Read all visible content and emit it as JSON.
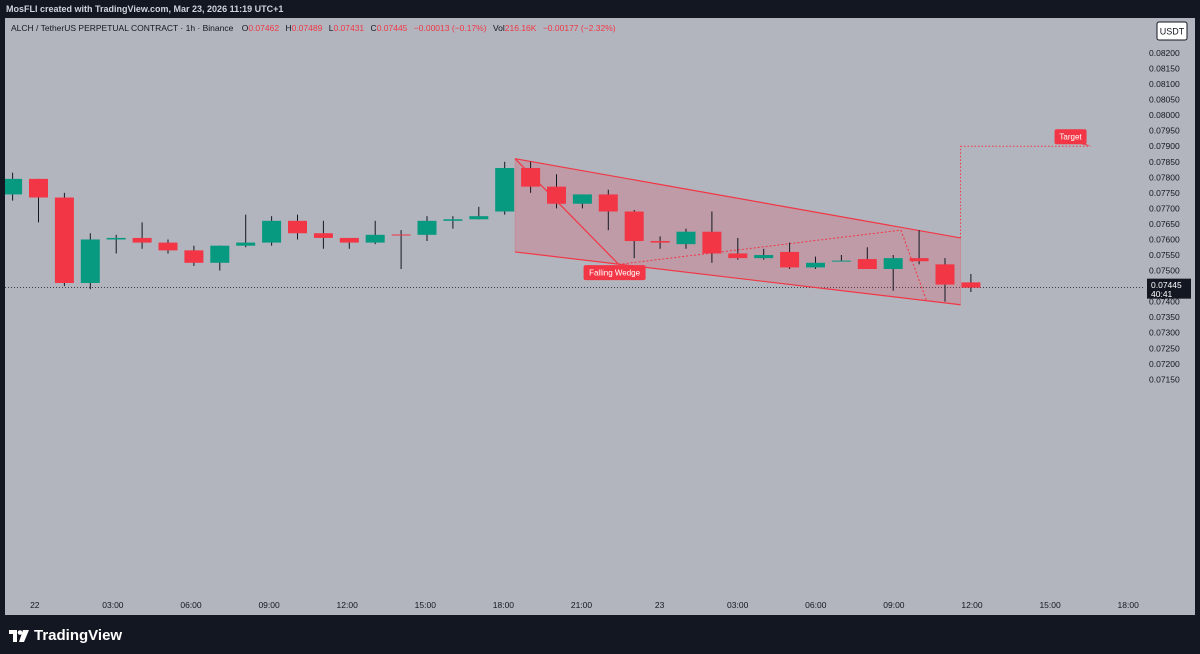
{
  "header": {
    "author_line": "MosFLI created with TradingView.com, Mar 23, 2026 11:19 UTC+1"
  },
  "legend": {
    "symbol": "ALCH / TetherUS PERPETUAL CONTRACT · 1h · Binance",
    "o_label": "O",
    "o_value": "0.07462",
    "h_label": "H",
    "h_value": "0.07489",
    "l_label": "L",
    "l_value": "0.07431",
    "c_label": "C",
    "c_value": "0.07445",
    "change": "−0.00013 (−0.17%)",
    "vol_label": "Vol",
    "vol_value": "216.16K",
    "vol_change": "−0.00177 (−2.32%)"
  },
  "price_scale": {
    "currency": "USDT",
    "ticks": [
      "0.08200",
      "0.08150",
      "0.08100",
      "0.08050",
      "0.08000",
      "0.07950",
      "0.07900",
      "0.07850",
      "0.07800",
      "0.07750",
      "0.07700",
      "0.07650",
      "0.07600",
      "0.07550",
      "0.07500",
      "0.07450",
      "0.07400",
      "0.07350",
      "0.07300",
      "0.07250",
      "0.07200",
      "0.07150"
    ],
    "last_price": "0.07445",
    "countdown": "40:41"
  },
  "time_scale": {
    "ticks": [
      "22",
      "03:00",
      "06:00",
      "09:00",
      "12:00",
      "15:00",
      "18:00",
      "21:00",
      "23",
      "03:00",
      "06:00",
      "09:00",
      "12:00",
      "15:00",
      "18:00"
    ]
  },
  "annotations": {
    "pattern_label": "Falling Wedge",
    "target_label": "Target"
  },
  "colors": {
    "background": "#b2b5be",
    "bull": "#089981",
    "bear": "#f23645",
    "wedge_fill": "#f2364533",
    "frame": "#131722"
  },
  "footer": {
    "brand": "TradingView"
  },
  "chart_data": {
    "type": "candlestick",
    "title": "ALCH / TetherUS PERPETUAL CONTRACT · 1h · Binance",
    "ylabel": "USDT",
    "ylim": [
      0.0711,
      0.0822
    ],
    "candles": [
      {
        "o": 0.07745,
        "h": 0.07815,
        "l": 0.07725,
        "c": 0.07795
      },
      {
        "o": 0.07795,
        "h": 0.07795,
        "l": 0.07655,
        "c": 0.07735
      },
      {
        "o": 0.07735,
        "h": 0.0775,
        "l": 0.0745,
        "c": 0.0746
      },
      {
        "o": 0.0746,
        "h": 0.0762,
        "l": 0.0744,
        "c": 0.076
      },
      {
        "o": 0.076,
        "h": 0.07615,
        "l": 0.07555,
        "c": 0.07605
      },
      {
        "o": 0.07605,
        "h": 0.07655,
        "l": 0.0757,
        "c": 0.0759
      },
      {
        "o": 0.0759,
        "h": 0.076,
        "l": 0.07555,
        "c": 0.07565
      },
      {
        "o": 0.07565,
        "h": 0.0758,
        "l": 0.07515,
        "c": 0.07525
      },
      {
        "o": 0.07525,
        "h": 0.0758,
        "l": 0.075,
        "c": 0.0758
      },
      {
        "o": 0.0758,
        "h": 0.0768,
        "l": 0.07575,
        "c": 0.0759
      },
      {
        "o": 0.0759,
        "h": 0.07675,
        "l": 0.0758,
        "c": 0.0766
      },
      {
        "o": 0.0766,
        "h": 0.0768,
        "l": 0.076,
        "c": 0.0762
      },
      {
        "o": 0.0762,
        "h": 0.0766,
        "l": 0.0757,
        "c": 0.07605
      },
      {
        "o": 0.07605,
        "h": 0.07605,
        "l": 0.0757,
        "c": 0.0759
      },
      {
        "o": 0.0759,
        "h": 0.0766,
        "l": 0.07585,
        "c": 0.07615
      },
      {
        "o": 0.07616,
        "h": 0.0763,
        "l": 0.07505,
        "c": 0.07615
      },
      {
        "o": 0.07615,
        "h": 0.07675,
        "l": 0.07595,
        "c": 0.0766
      },
      {
        "o": 0.0766,
        "h": 0.07675,
        "l": 0.07635,
        "c": 0.07665
      },
      {
        "o": 0.07665,
        "h": 0.07705,
        "l": 0.07665,
        "c": 0.07675
      },
      {
        "o": 0.0769,
        "h": 0.0785,
        "l": 0.0768,
        "c": 0.0783
      },
      {
        "o": 0.0783,
        "h": 0.0785,
        "l": 0.0775,
        "c": 0.0777
      },
      {
        "o": 0.0777,
        "h": 0.0781,
        "l": 0.077,
        "c": 0.07715
      },
      {
        "o": 0.07715,
        "h": 0.07745,
        "l": 0.077,
        "c": 0.07745
      },
      {
        "o": 0.07745,
        "h": 0.0776,
        "l": 0.0763,
        "c": 0.0769
      },
      {
        "o": 0.0769,
        "h": 0.07695,
        "l": 0.0754,
        "c": 0.07595
      },
      {
        "o": 0.07595,
        "h": 0.0761,
        "l": 0.0757,
        "c": 0.0759
      },
      {
        "o": 0.07585,
        "h": 0.07635,
        "l": 0.0757,
        "c": 0.07625
      },
      {
        "o": 0.07625,
        "h": 0.0769,
        "l": 0.07525,
        "c": 0.07555
      },
      {
        "o": 0.07555,
        "h": 0.07605,
        "l": 0.07535,
        "c": 0.0754
      },
      {
        "o": 0.0754,
        "h": 0.0757,
        "l": 0.07535,
        "c": 0.0755
      },
      {
        "o": 0.0756,
        "h": 0.0759,
        "l": 0.07505,
        "c": 0.0751
      },
      {
        "o": 0.0751,
        "h": 0.07545,
        "l": 0.07505,
        "c": 0.07525
      },
      {
        "o": 0.0753,
        "h": 0.0755,
        "l": 0.0753,
        "c": 0.07532
      },
      {
        "o": 0.07537,
        "h": 0.07575,
        "l": 0.07505,
        "c": 0.07505
      },
      {
        "o": 0.07505,
        "h": 0.0755,
        "l": 0.07435,
        "c": 0.0754
      },
      {
        "o": 0.0754,
        "h": 0.0763,
        "l": 0.0752,
        "c": 0.0753
      },
      {
        "o": 0.0752,
        "h": 0.0754,
        "l": 0.074,
        "c": 0.07455
      },
      {
        "o": 0.07462,
        "h": 0.07489,
        "l": 0.07431,
        "c": 0.07445
      }
    ],
    "falling_wedge": {
      "upper_line": [
        {
          "i": 19.4,
          "p": 0.0786
        },
        {
          "i": 36.6,
          "p": 0.07605
        }
      ],
      "lower_line": [
        {
          "i": 19.4,
          "p": 0.0756
        },
        {
          "i": 36.6,
          "p": 0.0739
        }
      ]
    },
    "target": {
      "price": 0.079
    }
  }
}
